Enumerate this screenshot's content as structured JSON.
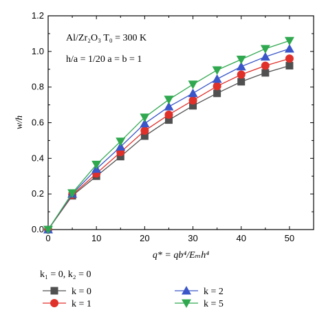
{
  "chart_data": {
    "type": "line",
    "xlabel": "q* = qb⁴/Eₘh⁴",
    "ylabel": "w/h",
    "xlim": [
      0,
      55
    ],
    "ylim": [
      0,
      1.2
    ],
    "xticks": [
      "0",
      "10",
      "20",
      "30",
      "40",
      "50"
    ],
    "yticks": [
      "0.0",
      "0.2",
      "0.4",
      "0.6",
      "0.8",
      "1.0",
      "1.2"
    ],
    "grid": false,
    "annotations": [
      "Al/Zr₂O₃ T₀ = 300 K",
      "h/a = 1/20 a = b = 1"
    ],
    "legend_title": "k₁ = 0, k₂ = 0",
    "legend_placement": "bottom",
    "x": [
      0,
      5,
      10,
      15,
      20,
      25,
      30,
      35,
      40,
      45,
      50
    ],
    "series": [
      {
        "name": "k = 0",
        "marker": "square",
        "color": "#505050",
        "values": [
          0.0,
          0.19,
          0.3,
          0.41,
          0.525,
          0.615,
          0.695,
          0.765,
          0.83,
          0.88,
          0.92
        ]
      },
      {
        "name": "k = 1",
        "marker": "circle",
        "color": "#e0302a",
        "values": [
          0.0,
          0.195,
          0.315,
          0.435,
          0.555,
          0.645,
          0.725,
          0.805,
          0.87,
          0.92,
          0.96
        ]
      },
      {
        "name": "k = 2",
        "marker": "triangle-up",
        "color": "#3a56c8",
        "values": [
          0.0,
          0.2,
          0.34,
          0.465,
          0.595,
          0.69,
          0.765,
          0.845,
          0.915,
          0.97,
          1.015
        ]
      },
      {
        "name": "k = 5",
        "marker": "triangle-down",
        "color": "#2fa84f",
        "values": [
          0.0,
          0.205,
          0.365,
          0.495,
          0.63,
          0.73,
          0.815,
          0.895,
          0.955,
          1.015,
          1.06
        ]
      }
    ]
  }
}
